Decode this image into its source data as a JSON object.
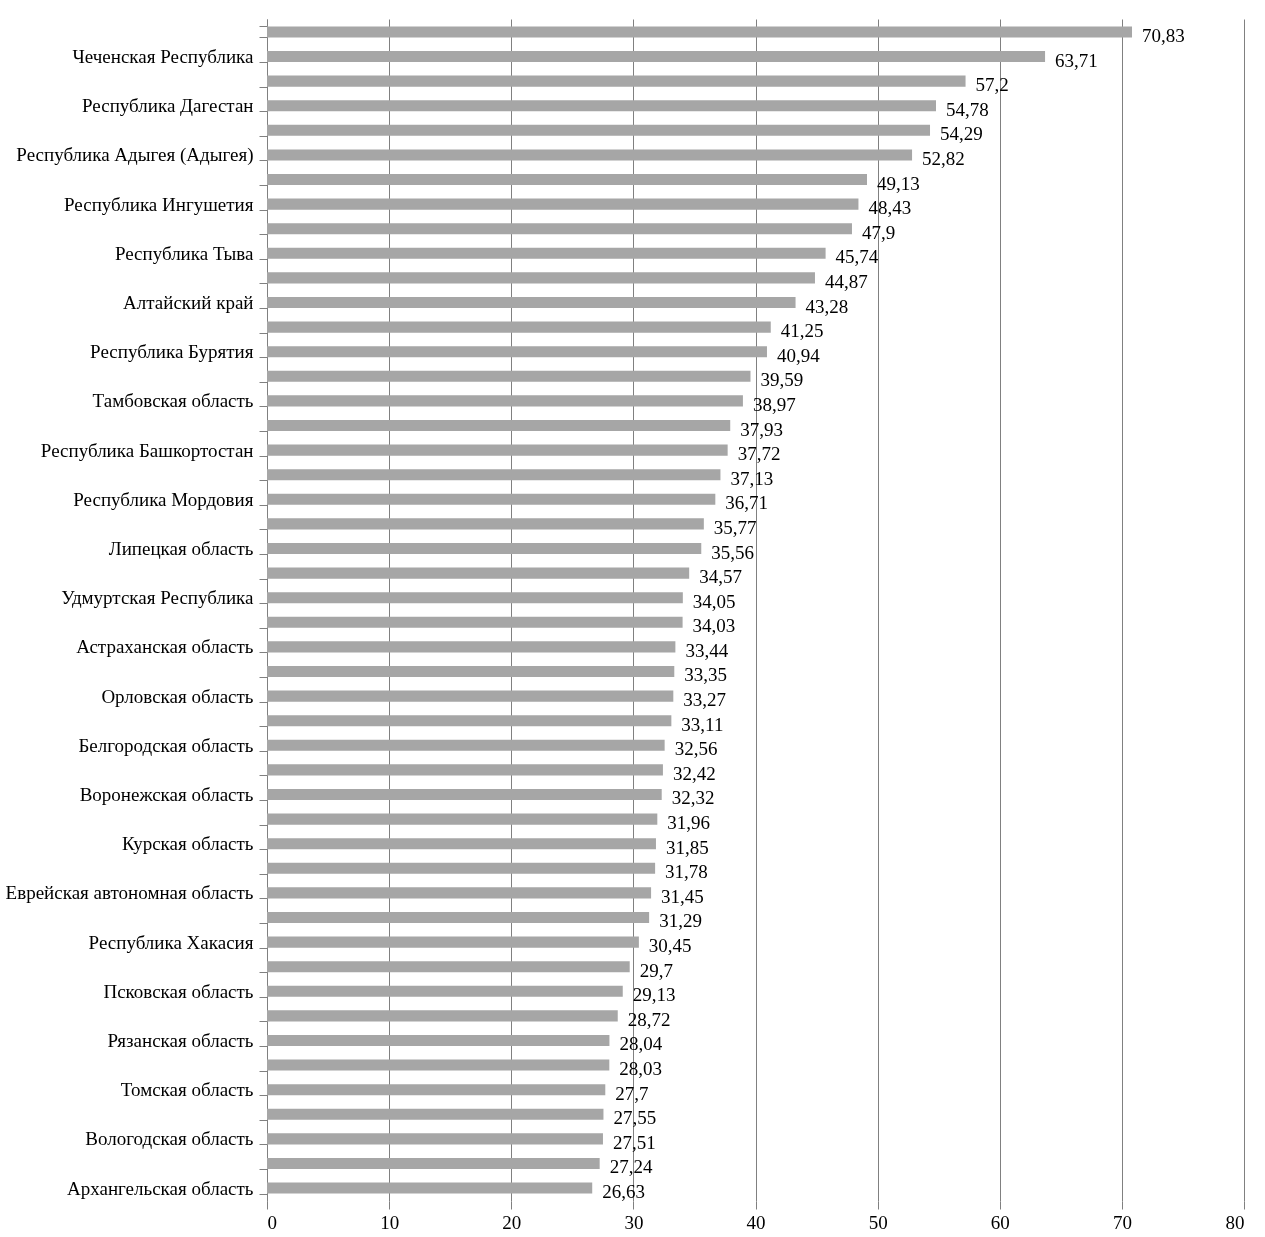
{
  "chart_data": {
    "type": "bar",
    "orientation": "horizontal",
    "color": "#a6a6a6",
    "categories": [
      null,
      "Чеченская Республика",
      null,
      "Республика Дагестан",
      null,
      "Республика Адыгея (Адыгея)",
      null,
      "Республика Ингушетия",
      null,
      "Республика Тыва",
      null,
      "Алтайский край",
      null,
      "Республика Бурятия",
      null,
      "Тамбовская область",
      null,
      "Республика Башкортостан",
      null,
      "Республика Мордовия",
      null,
      "Липецкая область",
      null,
      "Удмуртская Республика",
      null,
      "Астраханская область",
      null,
      "Орловская область",
      null,
      "Белгородская область",
      null,
      "Воронежская область",
      null,
      "Курская область",
      null,
      "Еврейская автономная область",
      null,
      "Республика Хакасия",
      null,
      "Псковская область",
      null,
      "Рязанская область",
      null,
      "Томская область",
      null,
      "Вологодская область",
      null,
      "Архангельская область"
    ],
    "values": [
      70.83,
      63.71,
      57.2,
      54.78,
      54.29,
      52.82,
      49.13,
      48.43,
      47.9,
      45.74,
      44.87,
      43.28,
      41.25,
      40.94,
      39.59,
      38.97,
      37.93,
      37.72,
      37.13,
      36.71,
      35.77,
      35.56,
      34.57,
      34.05,
      34.03,
      33.44,
      33.35,
      33.27,
      33.11,
      32.56,
      32.42,
      32.32,
      31.96,
      31.85,
      31.78,
      31.45,
      31.29,
      30.45,
      29.7,
      29.13,
      28.72,
      28.04,
      28.03,
      27.7,
      27.55,
      27.51,
      27.24,
      26.63
    ],
    "value_labels": [
      "70,83",
      "63,71",
      "57,2",
      "54,78",
      "54,29",
      "52,82",
      "49,13",
      "48,43",
      "47,9",
      "45,74",
      "44,87",
      "43,28",
      "41,25",
      "40,94",
      "39,59",
      "38,97",
      "37,93",
      "37,72",
      "37,13",
      "36,71",
      "35,77",
      "35,56",
      "34,57",
      "34,05",
      "34,03",
      "33,44",
      "33,35",
      "33,27",
      "33,11",
      "32,56",
      "32,42",
      "32,32",
      "31,96",
      "31,85",
      "31,78",
      "31,45",
      "31,29",
      "30,45",
      "29,7",
      "29,13",
      "28,72",
      "28,04",
      "28,03",
      "27,7",
      "27,55",
      "27,51",
      "27,24",
      "26,63"
    ],
    "xlim": [
      0,
      80
    ],
    "xticks": [
      0,
      10,
      20,
      30,
      40,
      50,
      60,
      70,
      80
    ],
    "grid": "x"
  }
}
